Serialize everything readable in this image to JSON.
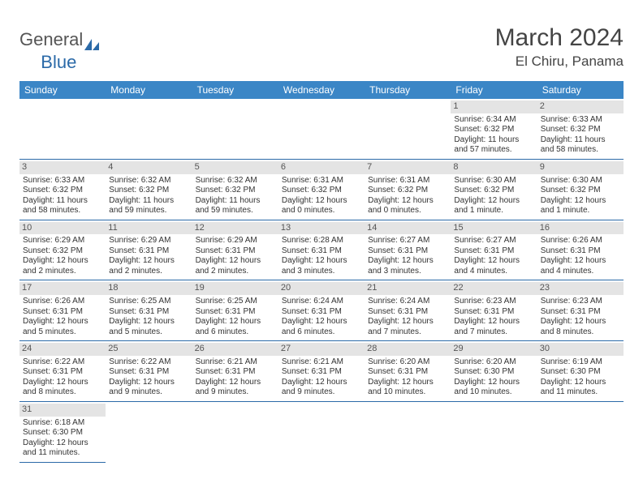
{
  "brand": {
    "part1": "General",
    "part2": "Blue"
  },
  "title": "March 2024",
  "location": "El Chiru, Panama",
  "colors": {
    "header_bg": "#3b86c6",
    "border": "#2b6aa8",
    "daynum_bg": "#e4e4e4",
    "text": "#333333",
    "brand_blue": "#2b6aa8"
  },
  "weekdays": [
    "Sunday",
    "Monday",
    "Tuesday",
    "Wednesday",
    "Thursday",
    "Friday",
    "Saturday"
  ],
  "rows": [
    [
      {
        "empty": true
      },
      {
        "empty": true
      },
      {
        "empty": true
      },
      {
        "empty": true
      },
      {
        "empty": true
      },
      {
        "day": "1",
        "sunrise": "Sunrise: 6:34 AM",
        "sunset": "Sunset: 6:32 PM",
        "daylight1": "Daylight: 11 hours",
        "daylight2": "and 57 minutes."
      },
      {
        "day": "2",
        "sunrise": "Sunrise: 6:33 AM",
        "sunset": "Sunset: 6:32 PM",
        "daylight1": "Daylight: 11 hours",
        "daylight2": "and 58 minutes."
      }
    ],
    [
      {
        "day": "3",
        "sunrise": "Sunrise: 6:33 AM",
        "sunset": "Sunset: 6:32 PM",
        "daylight1": "Daylight: 11 hours",
        "daylight2": "and 58 minutes."
      },
      {
        "day": "4",
        "sunrise": "Sunrise: 6:32 AM",
        "sunset": "Sunset: 6:32 PM",
        "daylight1": "Daylight: 11 hours",
        "daylight2": "and 59 minutes."
      },
      {
        "day": "5",
        "sunrise": "Sunrise: 6:32 AM",
        "sunset": "Sunset: 6:32 PM",
        "daylight1": "Daylight: 11 hours",
        "daylight2": "and 59 minutes."
      },
      {
        "day": "6",
        "sunrise": "Sunrise: 6:31 AM",
        "sunset": "Sunset: 6:32 PM",
        "daylight1": "Daylight: 12 hours",
        "daylight2": "and 0 minutes."
      },
      {
        "day": "7",
        "sunrise": "Sunrise: 6:31 AM",
        "sunset": "Sunset: 6:32 PM",
        "daylight1": "Daylight: 12 hours",
        "daylight2": "and 0 minutes."
      },
      {
        "day": "8",
        "sunrise": "Sunrise: 6:30 AM",
        "sunset": "Sunset: 6:32 PM",
        "daylight1": "Daylight: 12 hours",
        "daylight2": "and 1 minute."
      },
      {
        "day": "9",
        "sunrise": "Sunrise: 6:30 AM",
        "sunset": "Sunset: 6:32 PM",
        "daylight1": "Daylight: 12 hours",
        "daylight2": "and 1 minute."
      }
    ],
    [
      {
        "day": "10",
        "sunrise": "Sunrise: 6:29 AM",
        "sunset": "Sunset: 6:32 PM",
        "daylight1": "Daylight: 12 hours",
        "daylight2": "and 2 minutes."
      },
      {
        "day": "11",
        "sunrise": "Sunrise: 6:29 AM",
        "sunset": "Sunset: 6:31 PM",
        "daylight1": "Daylight: 12 hours",
        "daylight2": "and 2 minutes."
      },
      {
        "day": "12",
        "sunrise": "Sunrise: 6:29 AM",
        "sunset": "Sunset: 6:31 PM",
        "daylight1": "Daylight: 12 hours",
        "daylight2": "and 2 minutes."
      },
      {
        "day": "13",
        "sunrise": "Sunrise: 6:28 AM",
        "sunset": "Sunset: 6:31 PM",
        "daylight1": "Daylight: 12 hours",
        "daylight2": "and 3 minutes."
      },
      {
        "day": "14",
        "sunrise": "Sunrise: 6:27 AM",
        "sunset": "Sunset: 6:31 PM",
        "daylight1": "Daylight: 12 hours",
        "daylight2": "and 3 minutes."
      },
      {
        "day": "15",
        "sunrise": "Sunrise: 6:27 AM",
        "sunset": "Sunset: 6:31 PM",
        "daylight1": "Daylight: 12 hours",
        "daylight2": "and 4 minutes."
      },
      {
        "day": "16",
        "sunrise": "Sunrise: 6:26 AM",
        "sunset": "Sunset: 6:31 PM",
        "daylight1": "Daylight: 12 hours",
        "daylight2": "and 4 minutes."
      }
    ],
    [
      {
        "day": "17",
        "sunrise": "Sunrise: 6:26 AM",
        "sunset": "Sunset: 6:31 PM",
        "daylight1": "Daylight: 12 hours",
        "daylight2": "and 5 minutes."
      },
      {
        "day": "18",
        "sunrise": "Sunrise: 6:25 AM",
        "sunset": "Sunset: 6:31 PM",
        "daylight1": "Daylight: 12 hours",
        "daylight2": "and 5 minutes."
      },
      {
        "day": "19",
        "sunrise": "Sunrise: 6:25 AM",
        "sunset": "Sunset: 6:31 PM",
        "daylight1": "Daylight: 12 hours",
        "daylight2": "and 6 minutes."
      },
      {
        "day": "20",
        "sunrise": "Sunrise: 6:24 AM",
        "sunset": "Sunset: 6:31 PM",
        "daylight1": "Daylight: 12 hours",
        "daylight2": "and 6 minutes."
      },
      {
        "day": "21",
        "sunrise": "Sunrise: 6:24 AM",
        "sunset": "Sunset: 6:31 PM",
        "daylight1": "Daylight: 12 hours",
        "daylight2": "and 7 minutes."
      },
      {
        "day": "22",
        "sunrise": "Sunrise: 6:23 AM",
        "sunset": "Sunset: 6:31 PM",
        "daylight1": "Daylight: 12 hours",
        "daylight2": "and 7 minutes."
      },
      {
        "day": "23",
        "sunrise": "Sunrise: 6:23 AM",
        "sunset": "Sunset: 6:31 PM",
        "daylight1": "Daylight: 12 hours",
        "daylight2": "and 8 minutes."
      }
    ],
    [
      {
        "day": "24",
        "sunrise": "Sunrise: 6:22 AM",
        "sunset": "Sunset: 6:31 PM",
        "daylight1": "Daylight: 12 hours",
        "daylight2": "and 8 minutes."
      },
      {
        "day": "25",
        "sunrise": "Sunrise: 6:22 AM",
        "sunset": "Sunset: 6:31 PM",
        "daylight1": "Daylight: 12 hours",
        "daylight2": "and 9 minutes."
      },
      {
        "day": "26",
        "sunrise": "Sunrise: 6:21 AM",
        "sunset": "Sunset: 6:31 PM",
        "daylight1": "Daylight: 12 hours",
        "daylight2": "and 9 minutes."
      },
      {
        "day": "27",
        "sunrise": "Sunrise: 6:21 AM",
        "sunset": "Sunset: 6:31 PM",
        "daylight1": "Daylight: 12 hours",
        "daylight2": "and 9 minutes."
      },
      {
        "day": "28",
        "sunrise": "Sunrise: 6:20 AM",
        "sunset": "Sunset: 6:31 PM",
        "daylight1": "Daylight: 12 hours",
        "daylight2": "and 10 minutes."
      },
      {
        "day": "29",
        "sunrise": "Sunrise: 6:20 AM",
        "sunset": "Sunset: 6:30 PM",
        "daylight1": "Daylight: 12 hours",
        "daylight2": "and 10 minutes."
      },
      {
        "day": "30",
        "sunrise": "Sunrise: 6:19 AM",
        "sunset": "Sunset: 6:30 PM",
        "daylight1": "Daylight: 12 hours",
        "daylight2": "and 11 minutes."
      }
    ],
    [
      {
        "day": "31",
        "sunrise": "Sunrise: 6:18 AM",
        "sunset": "Sunset: 6:30 PM",
        "daylight1": "Daylight: 12 hours",
        "daylight2": "and 11 minutes."
      },
      {
        "empty": true
      },
      {
        "empty": true
      },
      {
        "empty": true
      },
      {
        "empty": true
      },
      {
        "empty": true
      },
      {
        "empty": true
      }
    ]
  ]
}
